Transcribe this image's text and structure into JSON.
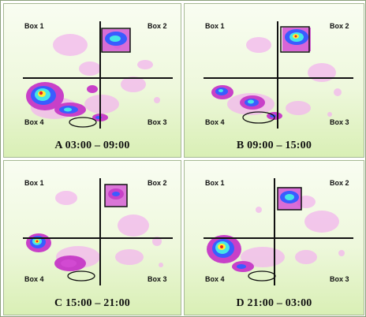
{
  "box_labels": {
    "box1": "Box 1",
    "box2": "Box 2",
    "box3": "Box 3",
    "box4": "Box 4"
  },
  "panels": [
    {
      "caption": "A 03:00 – 09:00"
    },
    {
      "caption": "B 09:00 – 15:00"
    },
    {
      "caption": "C 15:00 – 21:00"
    },
    {
      "caption": "D 21:00 – 03:00"
    }
  ],
  "colors": {
    "panel_top": "#f9fdf2",
    "panel_bottom": "#d9efb5",
    "heat_low": "#f3b6ee",
    "heat_mid": "#c840c8",
    "heat_high_blue": "#3050ff",
    "heat_cyan": "#40e0e0",
    "heat_yellow": "#ffee33",
    "heat_red": "#ee2222"
  }
}
